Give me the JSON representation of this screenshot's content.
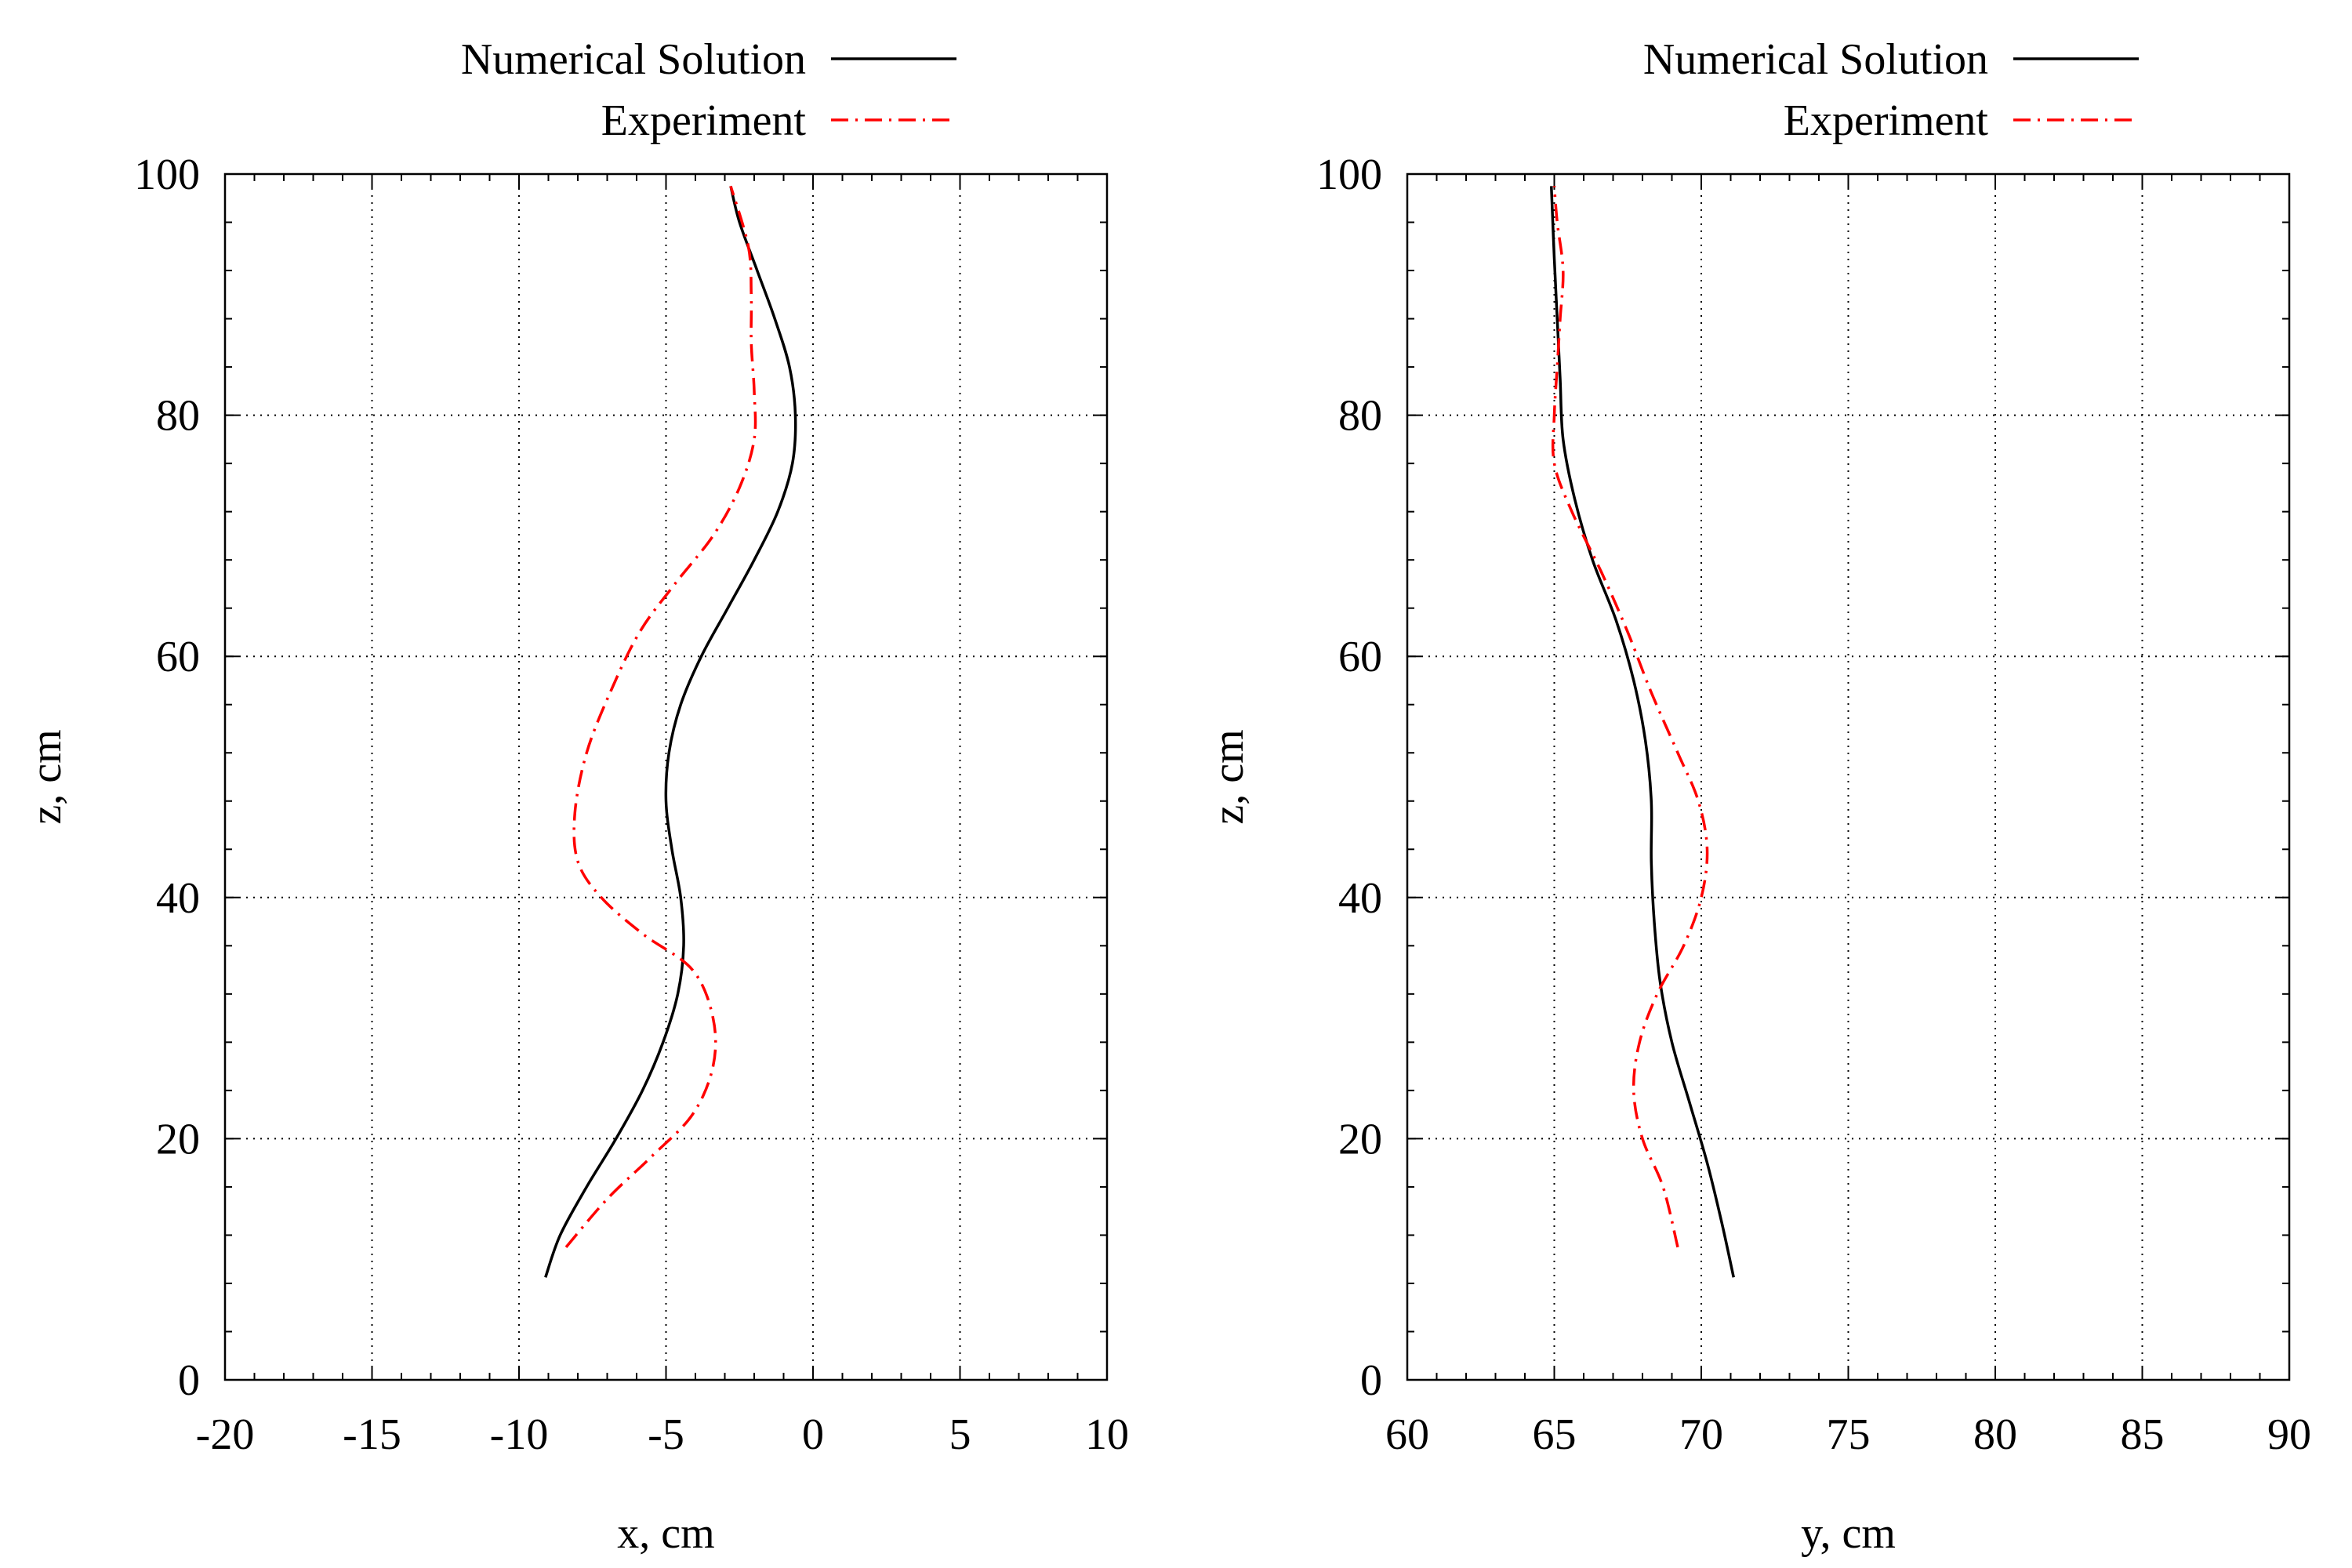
{
  "chart_data": [
    {
      "type": "line",
      "xlabel": "x, cm",
      "ylabel": "z, cm",
      "xlim": [
        -20,
        10
      ],
      "ylim": [
        0,
        100
      ],
      "xticks": [
        -20,
        -15,
        -10,
        -5,
        0,
        5,
        10
      ],
      "yticks": [
        0,
        20,
        40,
        60,
        80,
        100
      ],
      "grid": true,
      "legend_position": "top-right, above plot",
      "series": [
        {
          "name": "Numerical Solution",
          "color": "#000000",
          "style": "solid",
          "points": [
            [
              -9.1,
              8.5
            ],
            [
              -8.6,
              12
            ],
            [
              -7.7,
              16
            ],
            [
              -6.7,
              20
            ],
            [
              -5.8,
              24
            ],
            [
              -5.1,
              28
            ],
            [
              -4.6,
              32
            ],
            [
              -4.4,
              36
            ],
            [
              -4.5,
              40
            ],
            [
              -4.8,
              44
            ],
            [
              -5.0,
              48
            ],
            [
              -4.9,
              52
            ],
            [
              -4.5,
              56
            ],
            [
              -3.8,
              60
            ],
            [
              -2.9,
              64
            ],
            [
              -2.0,
              68
            ],
            [
              -1.2,
              72
            ],
            [
              -0.7,
              76
            ],
            [
              -0.6,
              80
            ],
            [
              -0.8,
              84
            ],
            [
              -1.3,
              88
            ],
            [
              -1.9,
              92
            ],
            [
              -2.5,
              96
            ],
            [
              -2.8,
              99
            ]
          ]
        },
        {
          "name": "Experiment",
          "color": "#ff0000",
          "style": "dash-dot",
          "points": [
            [
              -8.4,
              11
            ],
            [
              -7.0,
              15
            ],
            [
              -5.5,
              18.5
            ],
            [
              -4.1,
              22
            ],
            [
              -3.4,
              26
            ],
            [
              -3.4,
              30
            ],
            [
              -4.1,
              34
            ],
            [
              -5.8,
              37
            ],
            [
              -7.2,
              40
            ],
            [
              -8.0,
              43
            ],
            [
              -8.1,
              47
            ],
            [
              -7.7,
              52
            ],
            [
              -6.9,
              57
            ],
            [
              -5.9,
              62
            ],
            [
              -4.7,
              66
            ],
            [
              -3.4,
              70
            ],
            [
              -2.5,
              74
            ],
            [
              -2.0,
              78
            ],
            [
              -2.0,
              82
            ],
            [
              -2.1,
              86
            ],
            [
              -2.1,
              90
            ],
            [
              -2.2,
              94
            ],
            [
              -2.8,
              99
            ]
          ]
        }
      ]
    },
    {
      "type": "line",
      "xlabel": "y, cm",
      "ylabel": "z, cm",
      "xlim": [
        60,
        90
      ],
      "ylim": [
        0,
        100
      ],
      "xticks": [
        60,
        65,
        70,
        75,
        80,
        85,
        90
      ],
      "yticks": [
        0,
        20,
        40,
        60,
        80,
        100
      ],
      "grid": true,
      "legend_position": "top-right, above plot",
      "series": [
        {
          "name": "Numerical Solution",
          "color": "#000000",
          "style": "solid",
          "points": [
            [
              71.1,
              8.5
            ],
            [
              70.7,
              13
            ],
            [
              70.2,
              18
            ],
            [
              69.6,
              23
            ],
            [
              69.0,
              28
            ],
            [
              68.6,
              33
            ],
            [
              68.4,
              38
            ],
            [
              68.3,
              43
            ],
            [
              68.3,
              48
            ],
            [
              68.1,
              53
            ],
            [
              67.7,
              58
            ],
            [
              67.1,
              63
            ],
            [
              66.3,
              68
            ],
            [
              65.7,
              73
            ],
            [
              65.3,
              78
            ],
            [
              65.2,
              83
            ],
            [
              65.1,
              88
            ],
            [
              65.0,
              93
            ],
            [
              64.9,
              99
            ]
          ]
        },
        {
          "name": "Experiment",
          "color": "#ff0000",
          "style": "dash-dot",
          "points": [
            [
              69.2,
              11
            ],
            [
              68.7,
              16
            ],
            [
              68.0,
              20
            ],
            [
              67.7,
              24
            ],
            [
              67.9,
              28
            ],
            [
              68.5,
              32
            ],
            [
              69.4,
              36
            ],
            [
              70.0,
              40
            ],
            [
              70.2,
              44
            ],
            [
              69.9,
              48
            ],
            [
              69.2,
              52
            ],
            [
              68.3,
              57
            ],
            [
              67.5,
              62
            ],
            [
              66.6,
              67
            ],
            [
              65.6,
              72
            ],
            [
              65.0,
              76
            ],
            [
              65.0,
              80
            ],
            [
              65.1,
              84
            ],
            [
              65.2,
              88
            ],
            [
              65.3,
              92
            ],
            [
              65.1,
              96
            ],
            [
              65.0,
              99
            ]
          ]
        }
      ]
    }
  ]
}
